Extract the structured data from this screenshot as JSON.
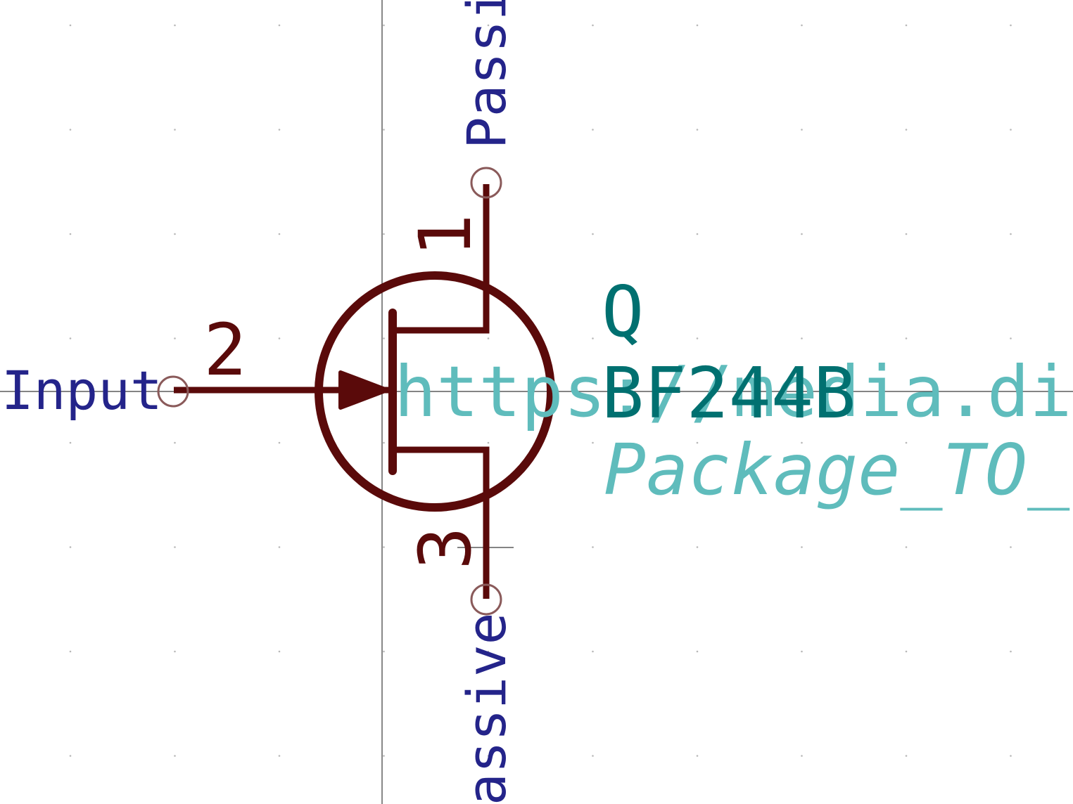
{
  "colors": {
    "background": "#ffffff",
    "grid_dot": "#b8b8b8",
    "axis": "#3a3a3a",
    "symbol": "#5a0a0a",
    "pin_circle": "#8a5a5a",
    "pin_type": "#24248a",
    "reference": "#007070",
    "value": "#007070",
    "field_faded": "#5fbcbc"
  },
  "symbol": {
    "reference": "Q",
    "value": "BF244B",
    "datasheet": "https://media.dig",
    "footprint": "Package_TO_"
  },
  "pins": [
    {
      "number": "1",
      "type": "Passi"
    },
    {
      "number": "2",
      "type": "Input"
    },
    {
      "number": "3",
      "type": "assive"
    }
  ]
}
